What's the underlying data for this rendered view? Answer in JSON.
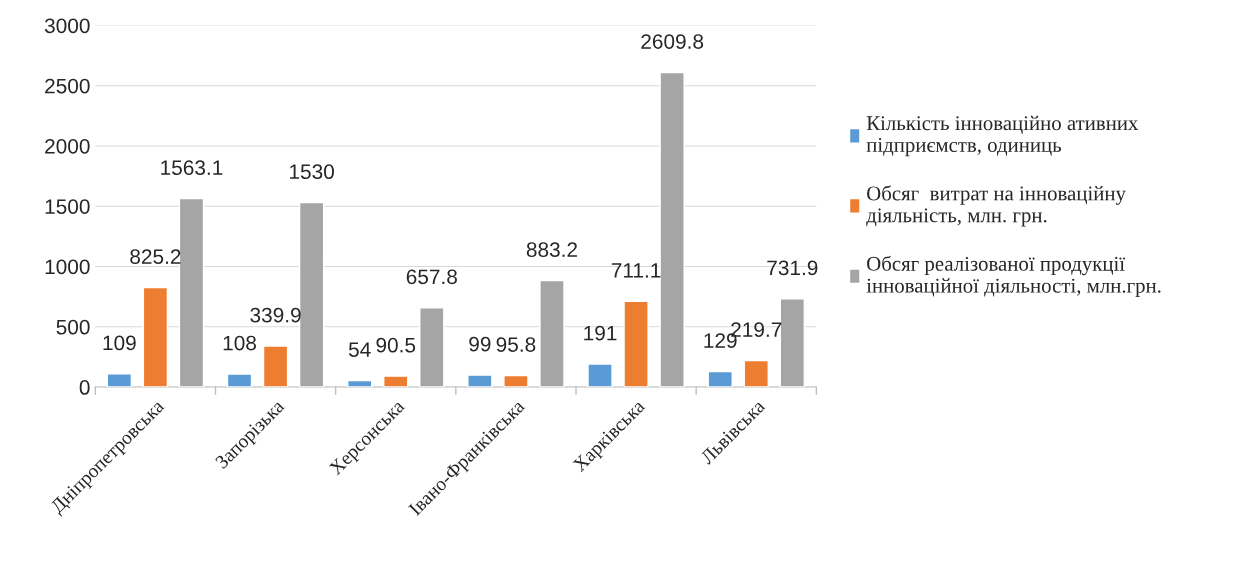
{
  "chart_data": {
    "type": "bar",
    "categories": [
      "Дніпропетровська",
      "Запорізька",
      "Херсонська",
      "Івано-Франківська",
      "Харківська",
      "Львівська"
    ],
    "series": [
      {
        "name": "Кількість інноваційно ативних\nпідприємств, одиниць",
        "color": "#5b9bd5",
        "values": [
          109,
          108,
          54,
          99,
          191,
          129
        ]
      },
      {
        "name": "Обсяг  витрат на інноваційну\nдіяльність, млн. грн.",
        "color": "#ed7d31",
        "values": [
          825.2,
          339.9,
          90.5,
          95.8,
          711.1,
          219.7
        ]
      },
      {
        "name": "Обсяг реалізованої продукції\nінноваційної діяльності, млн.грн.",
        "color": "#a5a5a5",
        "values": [
          1563.1,
          1530,
          657.8,
          883.2,
          2609.8,
          731.9
        ]
      }
    ],
    "ylim": [
      0,
      3000
    ],
    "yticks": [
      0,
      500,
      1000,
      1500,
      2000,
      2500,
      3000
    ],
    "grid": "y",
    "legend": "right",
    "data_labels": true
  }
}
